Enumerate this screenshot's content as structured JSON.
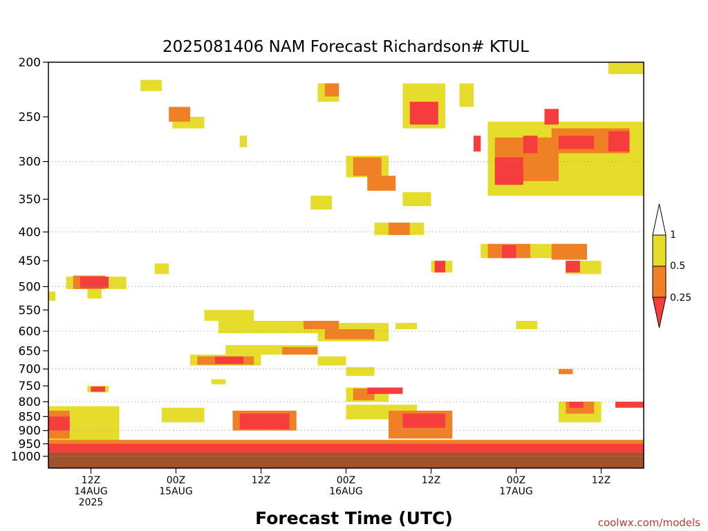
{
  "chart_data": {
    "type": "heatmap",
    "title": "2025081406 NAM Forecast Richardson# KTUL",
    "xlabel": "Forecast Time (UTC)",
    "ylabel": "",
    "credit": "coolwx.com/models",
    "x_unit": "hours since 2025-08-14 06Z",
    "xlim": [
      0,
      84
    ],
    "y_scale": "log",
    "ylim": [
      1000,
      200
    ],
    "y_ticks": [
      200,
      250,
      300,
      350,
      400,
      450,
      500,
      550,
      600,
      650,
      700,
      750,
      800,
      850,
      900,
      950,
      1000
    ],
    "y_gridlines": [
      300,
      400,
      500,
      600,
      700,
      800,
      900
    ],
    "x_ticks": [
      {
        "h": 6,
        "lines": [
          "12Z",
          "14AUG",
          "2025"
        ]
      },
      {
        "h": 18,
        "lines": [
          "00Z",
          "15AUG"
        ]
      },
      {
        "h": 30,
        "lines": [
          "12Z"
        ]
      },
      {
        "h": 42,
        "lines": [
          "00Z",
          "16AUG"
        ]
      },
      {
        "h": 54,
        "lines": [
          "12Z"
        ]
      },
      {
        "h": 66,
        "lines": [
          "00Z",
          "17AUG"
        ]
      },
      {
        "h": 78,
        "lines": [
          "12Z"
        ]
      }
    ],
    "legend": {
      "placement": "right",
      "labels": [
        "1",
        "0.5",
        "0.25"
      ],
      "bins": [
        {
          "range": "0.5-1",
          "color": "#e5dc2c"
        },
        {
          "range": "0.25-0.5",
          "color": "#ef8026"
        },
        {
          "range": "<0.25",
          "color": "#f53d3d"
        }
      ]
    },
    "colors": {
      "yellow": "#e5dc2c",
      "orange": "#ef8026",
      "red": "#f53d3d",
      "ground": "#a0522d"
    },
    "ground_level_hpa": 985,
    "patches": [
      {
        "x0": 13,
        "x1": 16,
        "p0": 215,
        "p1": 225,
        "bin": "yellow"
      },
      {
        "x0": 17,
        "x1": 20,
        "p0": 240,
        "p1": 255,
        "bin": "orange"
      },
      {
        "x0": 17.5,
        "x1": 22,
        "p0": 250,
        "p1": 262,
        "bin": "yellow"
      },
      {
        "x0": 27,
        "x1": 28,
        "p0": 270,
        "p1": 283,
        "bin": "yellow"
      },
      {
        "x0": 38,
        "x1": 41,
        "p0": 218,
        "p1": 235,
        "bin": "yellow"
      },
      {
        "x0": 39,
        "x1": 41,
        "p0": 218,
        "p1": 230,
        "bin": "orange"
      },
      {
        "x0": 50,
        "x1": 56,
        "p0": 218,
        "p1": 262,
        "bin": "yellow"
      },
      {
        "x0": 51,
        "x1": 55,
        "p0": 235,
        "p1": 258,
        "bin": "red"
      },
      {
        "x0": 58,
        "x1": 60,
        "p0": 218,
        "p1": 240,
        "bin": "yellow"
      },
      {
        "x0": 79,
        "x1": 84,
        "p0": 200,
        "p1": 210,
        "bin": "yellow"
      },
      {
        "x0": 42,
        "x1": 48,
        "p0": 293,
        "p1": 320,
        "bin": "yellow"
      },
      {
        "x0": 43,
        "x1": 47,
        "p0": 295,
        "p1": 318,
        "bin": "orange"
      },
      {
        "x0": 45,
        "x1": 49,
        "p0": 318,
        "p1": 338,
        "bin": "orange"
      },
      {
        "x0": 50,
        "x1": 54,
        "p0": 340,
        "p1": 360,
        "bin": "yellow"
      },
      {
        "x0": 37,
        "x1": 40,
        "p0": 345,
        "p1": 365,
        "bin": "yellow"
      },
      {
        "x0": 46,
        "x1": 53,
        "p0": 385,
        "p1": 405,
        "bin": "yellow"
      },
      {
        "x0": 48,
        "x1": 51,
        "p0": 385,
        "p1": 405,
        "bin": "orange"
      },
      {
        "x0": 62,
        "x1": 84,
        "p0": 255,
        "p1": 345,
        "bin": "yellow"
      },
      {
        "x0": 63,
        "x1": 72,
        "p0": 272,
        "p1": 325,
        "bin": "orange"
      },
      {
        "x0": 63,
        "x1": 67,
        "p0": 295,
        "p1": 330,
        "bin": "red"
      },
      {
        "x0": 67,
        "x1": 69,
        "p0": 270,
        "p1": 290,
        "bin": "red"
      },
      {
        "x0": 71,
        "x1": 82,
        "p0": 262,
        "p1": 290,
        "bin": "orange"
      },
      {
        "x0": 72,
        "x1": 77,
        "p0": 270,
        "p1": 285,
        "bin": "red"
      },
      {
        "x0": 79,
        "x1": 82,
        "p0": 265,
        "p1": 288,
        "bin": "red"
      },
      {
        "x0": 70,
        "x1": 72,
        "p0": 242,
        "p1": 258,
        "bin": "red"
      },
      {
        "x0": 60,
        "x1": 61,
        "p0": 270,
        "p1": 288,
        "bin": "red"
      },
      {
        "x0": 61,
        "x1": 76,
        "p0": 420,
        "p1": 445,
        "bin": "yellow"
      },
      {
        "x0": 62,
        "x1": 68,
        "p0": 420,
        "p1": 445,
        "bin": "orange"
      },
      {
        "x0": 64,
        "x1": 66,
        "p0": 422,
        "p1": 445,
        "bin": "red"
      },
      {
        "x0": 71,
        "x1": 76,
        "p0": 420,
        "p1": 448,
        "bin": "orange"
      },
      {
        "x0": 73,
        "x1": 78,
        "p0": 450,
        "p1": 475,
        "bin": "yellow"
      },
      {
        "x0": 73,
        "x1": 75,
        "p0": 450,
        "p1": 472,
        "bin": "red"
      },
      {
        "x0": 54,
        "x1": 57,
        "p0": 450,
        "p1": 472,
        "bin": "yellow"
      },
      {
        "x0": 54.5,
        "x1": 56,
        "p0": 450,
        "p1": 472,
        "bin": "red"
      },
      {
        "x0": 2.5,
        "x1": 11,
        "p0": 480,
        "p1": 505,
        "bin": "yellow"
      },
      {
        "x0": 3.5,
        "x1": 8,
        "p0": 478,
        "p1": 505,
        "bin": "orange"
      },
      {
        "x0": 4.5,
        "x1": 8.5,
        "p0": 480,
        "p1": 503,
        "bin": "red"
      },
      {
        "x0": 5.5,
        "x1": 7.5,
        "p0": 505,
        "p1": 525,
        "bin": "yellow"
      },
      {
        "x0": 15,
        "x1": 17,
        "p0": 455,
        "p1": 475,
        "bin": "yellow"
      },
      {
        "x0": 22,
        "x1": 29,
        "p0": 550,
        "p1": 575,
        "bin": "yellow"
      },
      {
        "x0": 24,
        "x1": 38,
        "p0": 575,
        "p1": 605,
        "bin": "yellow"
      },
      {
        "x0": 36,
        "x1": 41,
        "p0": 575,
        "p1": 595,
        "bin": "orange"
      },
      {
        "x0": 39,
        "x1": 46,
        "p0": 595,
        "p1": 620,
        "bin": "orange"
      },
      {
        "x0": 38,
        "x1": 48,
        "p0": 580,
        "p1": 625,
        "bin": "yellow"
      },
      {
        "x0": 49,
        "x1": 52,
        "p0": 580,
        "p1": 595,
        "bin": "yellow"
      },
      {
        "x0": 66,
        "x1": 69,
        "p0": 575,
        "p1": 595,
        "bin": "yellow"
      },
      {
        "x0": 25,
        "x1": 38,
        "p0": 635,
        "p1": 660,
        "bin": "yellow"
      },
      {
        "x0": 33,
        "x1": 38,
        "p0": 640,
        "p1": 660,
        "bin": "orange"
      },
      {
        "x0": 20,
        "x1": 30,
        "p0": 660,
        "p1": 690,
        "bin": "yellow"
      },
      {
        "x0": 21,
        "x1": 29,
        "p0": 665,
        "p1": 688,
        "bin": "orange"
      },
      {
        "x0": 23.5,
        "x1": 27.5,
        "p0": 665,
        "p1": 685,
        "bin": "red"
      },
      {
        "x0": 38,
        "x1": 42,
        "p0": 665,
        "p1": 690,
        "bin": "yellow"
      },
      {
        "x0": 42,
        "x1": 46,
        "p0": 695,
        "p1": 720,
        "bin": "yellow"
      },
      {
        "x0": 23,
        "x1": 25,
        "p0": 730,
        "p1": 745,
        "bin": "yellow"
      },
      {
        "x0": 42,
        "x1": 48,
        "p0": 755,
        "p1": 800,
        "bin": "yellow"
      },
      {
        "x0": 43,
        "x1": 46,
        "p0": 758,
        "p1": 795,
        "bin": "orange"
      },
      {
        "x0": 45,
        "x1": 50,
        "p0": 755,
        "p1": 775,
        "bin": "red"
      },
      {
        "x0": 5.5,
        "x1": 8.5,
        "p0": 750,
        "p1": 770,
        "bin": "yellow"
      },
      {
        "x0": 6,
        "x1": 8,
        "p0": 752,
        "p1": 768,
        "bin": "red"
      },
      {
        "x0": 72,
        "x1": 74,
        "p0": 700,
        "p1": 715,
        "bin": "orange"
      },
      {
        "x0": 0,
        "x1": 1,
        "p0": 510,
        "p1": 530,
        "bin": "yellow"
      },
      {
        "x0": 0,
        "x1": 10,
        "p0": 815,
        "p1": 985,
        "bin": "yellow"
      },
      {
        "x0": 0,
        "x1": 3,
        "p0": 830,
        "p1": 930,
        "bin": "orange"
      },
      {
        "x0": 0,
        "x1": 3,
        "p0": 850,
        "p1": 900,
        "bin": "red"
      },
      {
        "x0": 16,
        "x1": 22,
        "p0": 820,
        "p1": 870,
        "bin": "yellow"
      },
      {
        "x0": 26,
        "x1": 35,
        "p0": 830,
        "p1": 900,
        "bin": "orange"
      },
      {
        "x0": 27,
        "x1": 34,
        "p0": 840,
        "p1": 895,
        "bin": "red"
      },
      {
        "x0": 42,
        "x1": 52,
        "p0": 810,
        "p1": 860,
        "bin": "yellow"
      },
      {
        "x0": 48,
        "x1": 57,
        "p0": 830,
        "p1": 930,
        "bin": "orange"
      },
      {
        "x0": 50,
        "x1": 56,
        "p0": 840,
        "p1": 890,
        "bin": "red"
      },
      {
        "x0": 72,
        "x1": 78,
        "p0": 800,
        "p1": 870,
        "bin": "yellow"
      },
      {
        "x0": 73,
        "x1": 77,
        "p0": 800,
        "p1": 840,
        "bin": "orange"
      },
      {
        "x0": 73.5,
        "x1": 75.5,
        "p0": 800,
        "p1": 820,
        "bin": "red"
      },
      {
        "x0": 80,
        "x1": 84,
        "p0": 800,
        "p1": 820,
        "bin": "red"
      },
      {
        "x0": 0,
        "x1": 84,
        "p0": 935,
        "p1": 985,
        "bin": "orange"
      },
      {
        "x0": 0,
        "x1": 84,
        "p0": 950,
        "p1": 985,
        "bin": "red"
      }
    ]
  }
}
